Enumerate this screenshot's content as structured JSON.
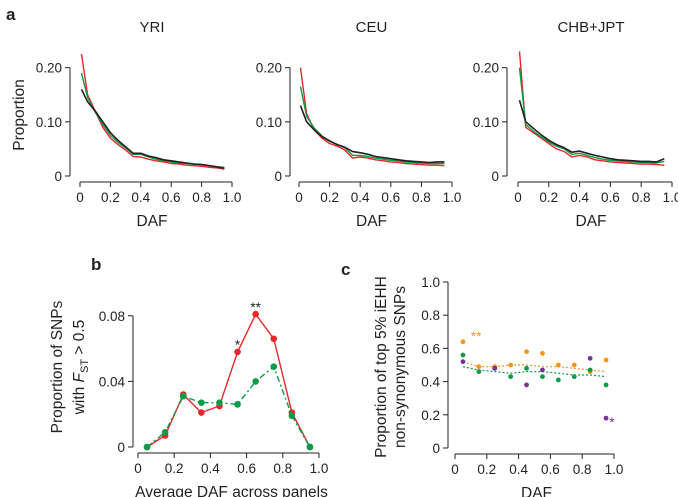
{
  "panel_labels": {
    "a": "a",
    "b": "b",
    "c": "c"
  },
  "colors": {
    "black": "#231f20",
    "red": "#e8272a",
    "green": "#0b9a48",
    "dark_green": "#0f6b35",
    "orange": "#f7941e",
    "purple": "#7b3294"
  },
  "chart_data": [
    {
      "id": "a-YRI",
      "type": "line",
      "title": "YRI",
      "xlabel": "DAF",
      "ylabel": "Proportion",
      "xlim": [
        0,
        1.0
      ],
      "ylim": [
        0,
        0.24
      ],
      "xticks": [
        "0",
        "0.2",
        "0.4",
        "0.6",
        "0.8",
        "1.0"
      ],
      "yticks": [
        "0",
        "0.10",
        "0.20"
      ],
      "x": [
        0.01,
        0.05,
        0.1,
        0.15,
        0.2,
        0.25,
        0.3,
        0.35,
        0.4,
        0.45,
        0.5,
        0.55,
        0.6,
        0.65,
        0.7,
        0.75,
        0.8,
        0.85,
        0.9,
        0.95
      ],
      "series": [
        {
          "color": "#e8272a",
          "values": [
            0.225,
            0.15,
            0.12,
            0.09,
            0.07,
            0.058,
            0.048,
            0.036,
            0.035,
            0.031,
            0.028,
            0.026,
            0.023,
            0.022,
            0.02,
            0.019,
            0.018,
            0.016,
            0.015,
            0.013
          ]
        },
        {
          "color": "#0b9a48",
          "values": [
            0.19,
            0.145,
            0.118,
            0.095,
            0.075,
            0.062,
            0.052,
            0.04,
            0.04,
            0.035,
            0.031,
            0.028,
            0.026,
            0.024,
            0.023,
            0.022,
            0.021,
            0.019,
            0.017,
            0.016
          ]
        },
        {
          "color": "#231f20",
          "values": [
            0.16,
            0.137,
            0.12,
            0.1,
            0.08,
            0.066,
            0.054,
            0.042,
            0.042,
            0.037,
            0.034,
            0.03,
            0.028,
            0.026,
            0.024,
            0.022,
            0.021,
            0.019,
            0.017,
            0.014
          ]
        }
      ]
    },
    {
      "id": "a-CEU",
      "type": "line",
      "title": "CEU",
      "xlabel": "DAF",
      "ylabel": "",
      "xlim": [
        0,
        1.0
      ],
      "ylim": [
        0,
        0.24
      ],
      "xticks": [
        "0",
        "0.2",
        "0.4",
        "0.6",
        "0.8",
        "1.0"
      ],
      "yticks": [
        "0",
        "0.10",
        "0.20"
      ],
      "x": [
        0.01,
        0.05,
        0.1,
        0.15,
        0.2,
        0.25,
        0.3,
        0.35,
        0.4,
        0.45,
        0.5,
        0.55,
        0.6,
        0.65,
        0.7,
        0.75,
        0.8,
        0.85,
        0.9,
        0.95
      ],
      "series": [
        {
          "color": "#e8272a",
          "values": [
            0.2,
            0.115,
            0.085,
            0.07,
            0.06,
            0.055,
            0.048,
            0.033,
            0.035,
            0.033,
            0.03,
            0.028,
            0.026,
            0.025,
            0.023,
            0.022,
            0.021,
            0.02,
            0.02,
            0.019
          ]
        },
        {
          "color": "#0b9a48",
          "values": [
            0.165,
            0.11,
            0.088,
            0.074,
            0.064,
            0.058,
            0.052,
            0.038,
            0.038,
            0.036,
            0.033,
            0.031,
            0.029,
            0.028,
            0.026,
            0.025,
            0.024,
            0.023,
            0.023,
            0.023
          ]
        },
        {
          "color": "#231f20",
          "values": [
            0.13,
            0.1,
            0.085,
            0.073,
            0.065,
            0.058,
            0.053,
            0.045,
            0.043,
            0.04,
            0.036,
            0.034,
            0.032,
            0.03,
            0.028,
            0.027,
            0.026,
            0.025,
            0.026,
            0.026
          ]
        }
      ]
    },
    {
      "id": "a-CHB+JPT",
      "type": "line",
      "title": "CHB+JPT",
      "xlabel": "DAF",
      "ylabel": "",
      "xlim": [
        0,
        1.0
      ],
      "ylim": [
        0,
        0.24
      ],
      "xticks": [
        "0",
        "0.2",
        "0.4",
        "0.6",
        "0.8",
        "1.0"
      ],
      "yticks": [
        "0",
        "0.10",
        "0.20"
      ],
      "x": [
        0.01,
        0.05,
        0.1,
        0.15,
        0.2,
        0.25,
        0.3,
        0.35,
        0.4,
        0.45,
        0.5,
        0.55,
        0.6,
        0.65,
        0.7,
        0.75,
        0.8,
        0.85,
        0.9,
        0.95
      ],
      "series": [
        {
          "color": "#e8272a",
          "values": [
            0.23,
            0.09,
            0.08,
            0.07,
            0.06,
            0.05,
            0.045,
            0.035,
            0.038,
            0.035,
            0.03,
            0.028,
            0.026,
            0.025,
            0.024,
            0.023,
            0.022,
            0.022,
            0.021,
            0.02
          ]
        },
        {
          "color": "#0b9a48",
          "values": [
            0.2,
            0.095,
            0.083,
            0.072,
            0.063,
            0.055,
            0.05,
            0.04,
            0.042,
            0.038,
            0.034,
            0.031,
            0.029,
            0.028,
            0.027,
            0.026,
            0.025,
            0.025,
            0.024,
            0.027
          ]
        },
        {
          "color": "#231f20",
          "values": [
            0.14,
            0.1,
            0.088,
            0.076,
            0.066,
            0.058,
            0.052,
            0.044,
            0.046,
            0.042,
            0.038,
            0.035,
            0.032,
            0.03,
            0.029,
            0.028,
            0.027,
            0.027,
            0.026,
            0.032
          ]
        }
      ]
    },
    {
      "id": "b",
      "type": "line",
      "xlabel": "Average DAF across panels",
      "ylabel_line1": "Proportion of SNPs",
      "ylabel_line2_pre": "with ",
      "ylabel_line2_F": "F",
      "ylabel_line2_sub": "ST",
      "ylabel_line2_post": " > 0.5",
      "xlim": [
        0,
        1.0
      ],
      "ylim": [
        0,
        0.1
      ],
      "xticks": [
        "0",
        "0.2",
        "0.4",
        "0.6",
        "0.8",
        "1.0"
      ],
      "yticks": [
        "0",
        "0.04",
        "0.08"
      ],
      "x": [
        0.05,
        0.15,
        0.25,
        0.35,
        0.45,
        0.55,
        0.65,
        0.75,
        0.85,
        0.95
      ],
      "series": [
        {
          "color": "#e8272a",
          "dash": false,
          "values": [
            0.0,
            0.007,
            0.032,
            0.021,
            0.025,
            0.058,
            0.081,
            0.066,
            0.021,
            0.0
          ]
        },
        {
          "color": "#0b9a48",
          "dash": true,
          "values": [
            0.0,
            0.009,
            0.031,
            0.027,
            0.027,
            0.026,
            0.04,
            0.049,
            0.019,
            0.0
          ]
        }
      ],
      "annotations": [
        {
          "text": "*",
          "x": 0.55,
          "y": 0.063
        },
        {
          "text": "**",
          "x": 0.65,
          "y": 0.086
        }
      ]
    },
    {
      "id": "c",
      "type": "scatter",
      "xlabel": "DAF",
      "ylabel_line1": "Proportion of top 5% iEHH",
      "ylabel_line2": "non-synonymous SNPs",
      "xlim": [
        0,
        1.0
      ],
      "ylim": [
        0,
        1.0
      ],
      "xticks": [
        "0",
        "0.2",
        "0.4",
        "0.6",
        "0.8",
        "1.0"
      ],
      "yticks": [
        "0",
        "0.2",
        "0.4",
        "0.6",
        "0.8",
        "1.0"
      ],
      "series": [
        {
          "color": "#f7941e",
          "x": [
            0.05,
            0.15,
            0.25,
            0.35,
            0.45,
            0.55,
            0.65,
            0.75,
            0.85,
            0.95
          ],
          "values": [
            0.64,
            0.49,
            0.49,
            0.5,
            0.58,
            0.57,
            0.5,
            0.5,
            0.46,
            0.53
          ],
          "trend": [
            0.52,
            0.49,
            0.49,
            0.5,
            0.5,
            0.49,
            0.49,
            0.48,
            0.47,
            0.46
          ]
        },
        {
          "color": "#0b9a48",
          "x": [
            0.05,
            0.15,
            0.25,
            0.35,
            0.45,
            0.55,
            0.65,
            0.75,
            0.85,
            0.95
          ],
          "values": [
            0.56,
            0.46,
            0.48,
            0.43,
            0.48,
            0.43,
            0.41,
            0.43,
            0.47,
            0.38
          ],
          "trend": [
            0.49,
            0.47,
            0.46,
            0.45,
            0.46,
            0.46,
            0.45,
            0.44,
            0.44,
            0.43
          ]
        },
        {
          "color": "#7b3294",
          "x": [
            0.05,
            0.25,
            0.45,
            0.55,
            0.85,
            0.95
          ],
          "values": [
            0.52,
            0.48,
            0.38,
            0.47,
            0.54,
            0.18
          ],
          "trend": []
        }
      ],
      "annotations": [
        {
          "text": "**",
          "x": 0.1,
          "y": 0.67,
          "color": "#f7941e"
        },
        {
          "text": "*",
          "x": 0.97,
          "y": 0.15,
          "color": "#7b3294"
        }
      ]
    }
  ]
}
